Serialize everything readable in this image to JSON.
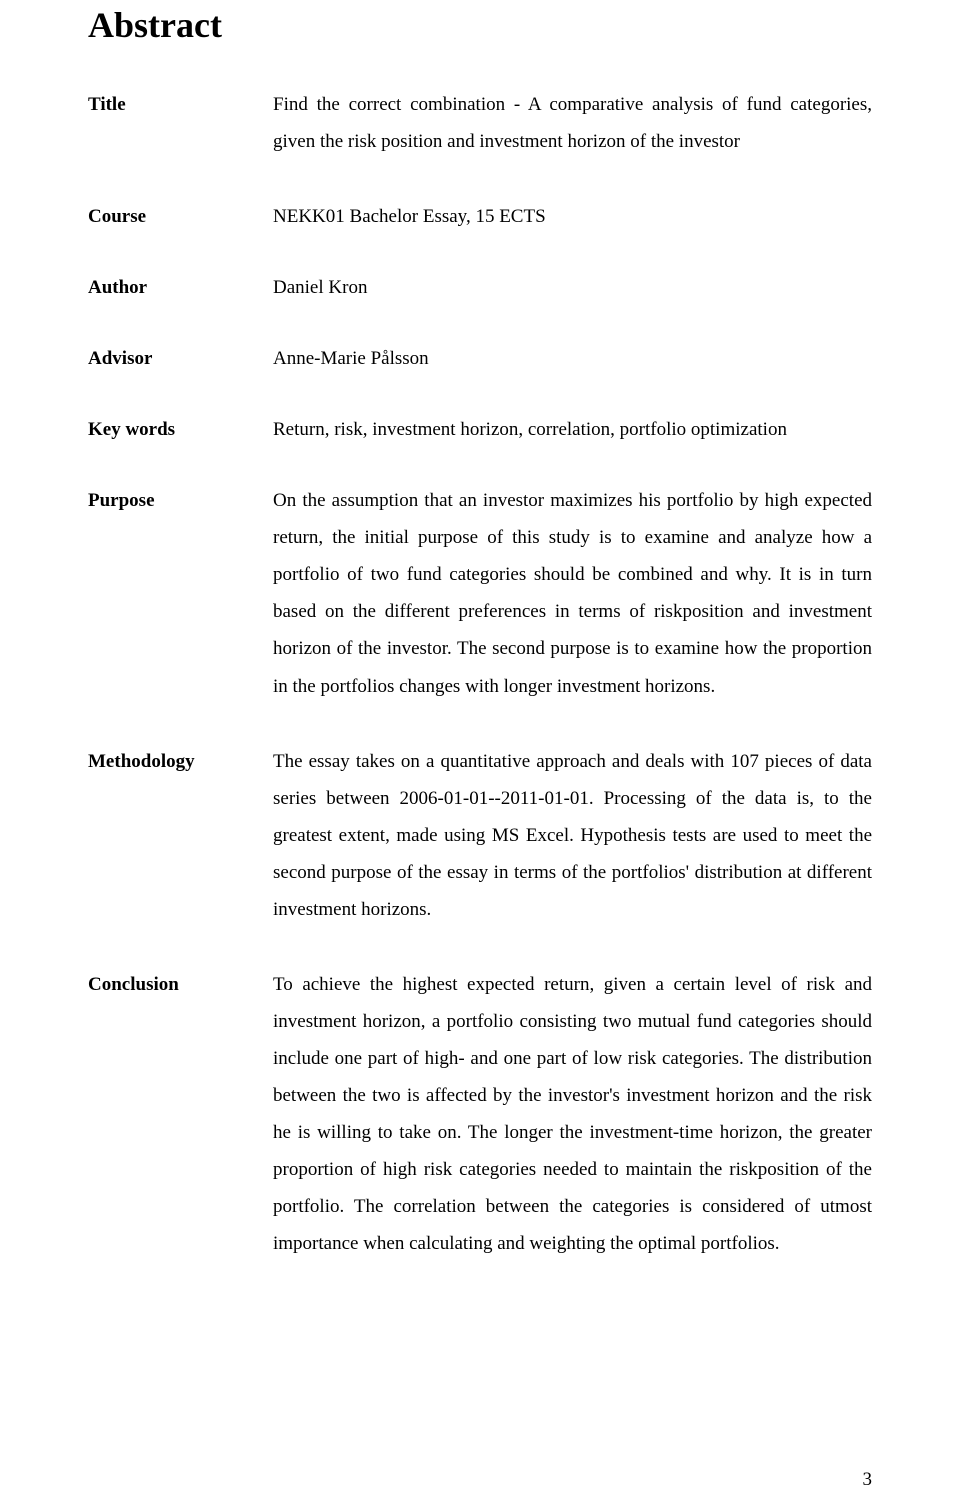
{
  "heading": "Abstract",
  "rows": {
    "title": {
      "label": "Title",
      "value": "Find the correct combination - A comparative analysis of fund categories, given the risk position and investment horizon of the investor"
    },
    "course": {
      "label": "Course",
      "value": "NEKK01 Bachelor Essay, 15 ECTS"
    },
    "author": {
      "label": "Author",
      "value": "Daniel Kron"
    },
    "advisor": {
      "label": "Advisor",
      "value": "Anne-Marie Pålsson"
    },
    "keywords": {
      "label": "Key words",
      "value": "Return, risk, investment horizon, correlation, portfolio optimization"
    },
    "purpose": {
      "label": "Purpose",
      "value": "On the assumption that an investor maximizes his portfolio by high expected return, the initial purpose of this study is to examine and analyze how a portfolio of two fund categories should be combined and why. It is in turn based on the different preferences in terms of riskposition and investment horizon of the investor. The second purpose is to examine how the proportion in the portfolios changes with longer investment horizons."
    },
    "methodology": {
      "label": "Methodology",
      "value": "The essay takes on a quantitative approach and deals with 107 pieces of data series between 2006-01-01--2011-01-01. Processing of the data is, to the greatest extent, made using MS Excel. Hypothesis tests are used to meet the second purpose of the essay in terms of the portfolios' distribution at different investment horizons."
    },
    "conclusion": {
      "label": "Conclusion",
      "value": "To achieve the highest expected return, given a certain level of risk and investment horizon, a portfolio consisting two mutual fund categories should include one part of high- and one part of low risk categories. The distribution between the two is affected by the investor's investment horizon and the risk he is willing to take on. The longer the investment-time horizon, the greater proportion of high risk categories needed to maintain the riskposition of the portfolio. The correlation between the categories is considered of utmost importance when calculating and weighting the optimal portfolios."
    }
  },
  "page_number": "3"
}
